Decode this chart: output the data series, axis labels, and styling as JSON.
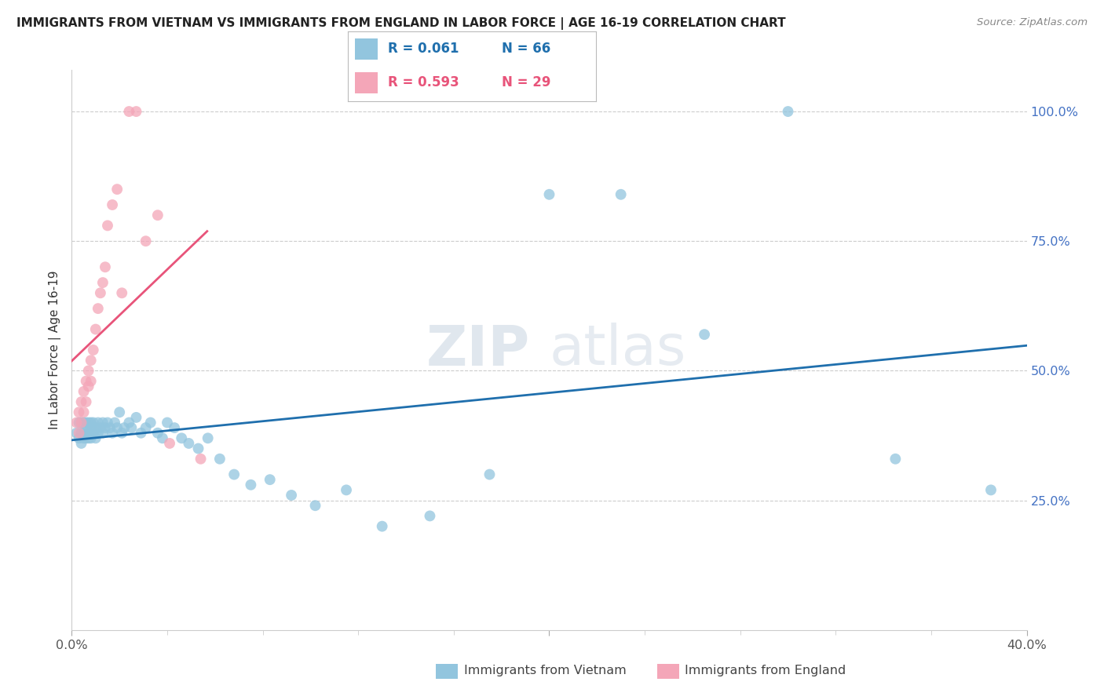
{
  "title": "IMMIGRANTS FROM VIETNAM VS IMMIGRANTS FROM ENGLAND IN LABOR FORCE | AGE 16-19 CORRELATION CHART",
  "source": "Source: ZipAtlas.com",
  "ylabel": "In Labor Force | Age 16-19",
  "xlim": [
    0.0,
    0.4
  ],
  "ylim": [
    0.0,
    1.08
  ],
  "yticks": [
    0.25,
    0.5,
    0.75,
    1.0
  ],
  "ytick_labels": [
    "25.0%",
    "50.0%",
    "75.0%",
    "100.0%"
  ],
  "xticks": [
    0.0,
    0.2,
    0.4
  ],
  "xtick_labels": [
    "0.0%",
    "",
    "40.0%"
  ],
  "r_vietnam": "0.061",
  "n_vietnam": "66",
  "r_england": "0.593",
  "n_england": "29",
  "color_vietnam": "#92c5de",
  "color_england": "#f4a6b8",
  "color_line_vietnam": "#1f6fad",
  "color_line_england": "#e8547a",
  "watermark_zip": "ZIP",
  "watermark_atlas": "atlas",
  "vietnam_x": [
    0.002,
    0.003,
    0.003,
    0.004,
    0.004,
    0.004,
    0.005,
    0.005,
    0.005,
    0.006,
    0.006,
    0.006,
    0.007,
    0.007,
    0.007,
    0.008,
    0.008,
    0.008,
    0.009,
    0.009,
    0.01,
    0.01,
    0.011,
    0.011,
    0.012,
    0.013,
    0.013,
    0.014,
    0.015,
    0.016,
    0.017,
    0.018,
    0.019,
    0.02,
    0.021,
    0.022,
    0.024,
    0.025,
    0.027,
    0.029,
    0.031,
    0.033,
    0.036,
    0.038,
    0.04,
    0.043,
    0.046,
    0.049,
    0.053,
    0.057,
    0.062,
    0.068,
    0.075,
    0.083,
    0.092,
    0.102,
    0.115,
    0.13,
    0.15,
    0.175,
    0.2,
    0.23,
    0.265,
    0.3,
    0.345,
    0.385
  ],
  "vietnam_y": [
    0.38,
    0.4,
    0.37,
    0.4,
    0.38,
    0.36,
    0.4,
    0.38,
    0.37,
    0.4,
    0.39,
    0.37,
    0.4,
    0.38,
    0.37,
    0.4,
    0.39,
    0.37,
    0.4,
    0.38,
    0.39,
    0.37,
    0.4,
    0.38,
    0.39,
    0.4,
    0.38,
    0.39,
    0.4,
    0.39,
    0.38,
    0.4,
    0.39,
    0.42,
    0.38,
    0.39,
    0.4,
    0.39,
    0.41,
    0.38,
    0.39,
    0.4,
    0.38,
    0.37,
    0.4,
    0.39,
    0.37,
    0.36,
    0.35,
    0.37,
    0.33,
    0.3,
    0.28,
    0.29,
    0.26,
    0.24,
    0.27,
    0.2,
    0.22,
    0.3,
    0.84,
    0.84,
    0.57,
    1.0,
    0.33,
    0.27
  ],
  "england_x": [
    0.002,
    0.003,
    0.003,
    0.004,
    0.004,
    0.005,
    0.005,
    0.006,
    0.006,
    0.007,
    0.007,
    0.008,
    0.008,
    0.009,
    0.01,
    0.011,
    0.012,
    0.013,
    0.014,
    0.015,
    0.017,
    0.019,
    0.021,
    0.024,
    0.027,
    0.031,
    0.036,
    0.041,
    0.054
  ],
  "england_y": [
    0.4,
    0.42,
    0.38,
    0.44,
    0.4,
    0.46,
    0.42,
    0.48,
    0.44,
    0.5,
    0.47,
    0.52,
    0.48,
    0.54,
    0.58,
    0.62,
    0.65,
    0.67,
    0.7,
    0.78,
    0.82,
    0.85,
    0.65,
    1.0,
    1.0,
    0.75,
    0.8,
    0.36,
    0.33
  ]
}
